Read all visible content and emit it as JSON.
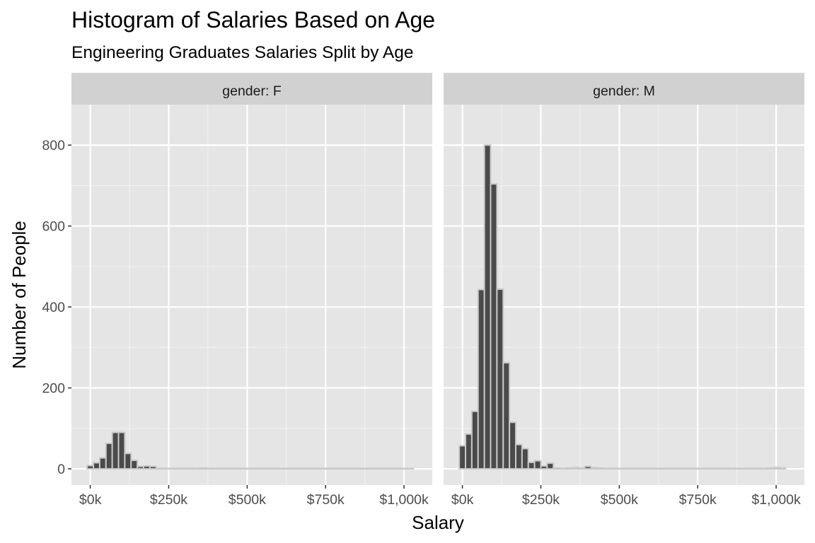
{
  "title": "Histogram of Salaries Based on Age",
  "subtitle": "Engineering Graduates Salaries Split by Age",
  "colors": {
    "panel_background": "#e5e5e5",
    "strip_background": "#d1d1d1",
    "grid_major": "#ffffff",
    "grid_minor": "#f2f2f2",
    "bar_fill": "#4a4a4a",
    "bar_outline": "#c8c8c8",
    "tick_text": "#4d4d4d",
    "title_text": "#000000"
  },
  "chart_data": {
    "type": "bar",
    "subtype": "histogram",
    "xlabel": "Salary",
    "ylabel": "Number of People",
    "facet_variable": "gender",
    "xlim": [
      -60000,
      1090000
    ],
    "ylim": [
      -40,
      900
    ],
    "x_ticks": [
      0,
      250000,
      500000,
      750000,
      1000000
    ],
    "x_tick_labels": [
      "$0k",
      "$250k",
      "$500k",
      "$750k",
      "$1,000k"
    ],
    "y_ticks": [
      0,
      200,
      400,
      600,
      800
    ],
    "y_tick_labels": [
      "0",
      "200",
      "400",
      "600",
      "800"
    ],
    "grid": true,
    "bin_width": 20000,
    "bin_centers": [
      0,
      20000,
      40000,
      60000,
      80000,
      100000,
      120000,
      140000,
      160000,
      180000,
      200000,
      220000,
      240000,
      260000,
      280000,
      300000,
      320000,
      340000,
      360000,
      380000,
      400000,
      420000,
      440000,
      460000,
      480000,
      500000,
      520000,
      540000,
      560000,
      580000,
      600000,
      620000,
      640000,
      660000,
      680000,
      700000,
      720000,
      740000,
      760000,
      780000,
      800000,
      820000,
      840000,
      860000,
      880000,
      900000,
      920000,
      940000,
      960000,
      980000,
      1000000,
      1020000
    ],
    "series": [
      {
        "facet_label": "gender: F",
        "values": [
          8,
          15,
          27,
          63,
          90,
          90,
          38,
          21,
          6,
          7,
          6,
          1,
          1,
          1,
          1,
          1,
          1,
          1,
          2,
          1,
          1,
          1,
          1,
          1,
          1,
          1,
          1,
          1,
          1,
          1,
          1,
          1,
          1,
          1,
          1,
          1,
          1,
          1,
          1,
          1,
          1,
          1,
          1,
          1,
          1,
          1,
          1,
          1,
          1,
          1,
          1,
          1
        ]
      },
      {
        "facet_label": "gender: M",
        "values": [
          57,
          86,
          142,
          443,
          800,
          704,
          444,
          262,
          115,
          60,
          50,
          16,
          20,
          7,
          14,
          2,
          1,
          2,
          3,
          2,
          6,
          3,
          2,
          1,
          1,
          1,
          1,
          1,
          1,
          1,
          1,
          1,
          1,
          1,
          1,
          1,
          1,
          1,
          1,
          1,
          1,
          1,
          1,
          1,
          1,
          1,
          1,
          1,
          1,
          2,
          3,
          2
        ]
      }
    ]
  }
}
